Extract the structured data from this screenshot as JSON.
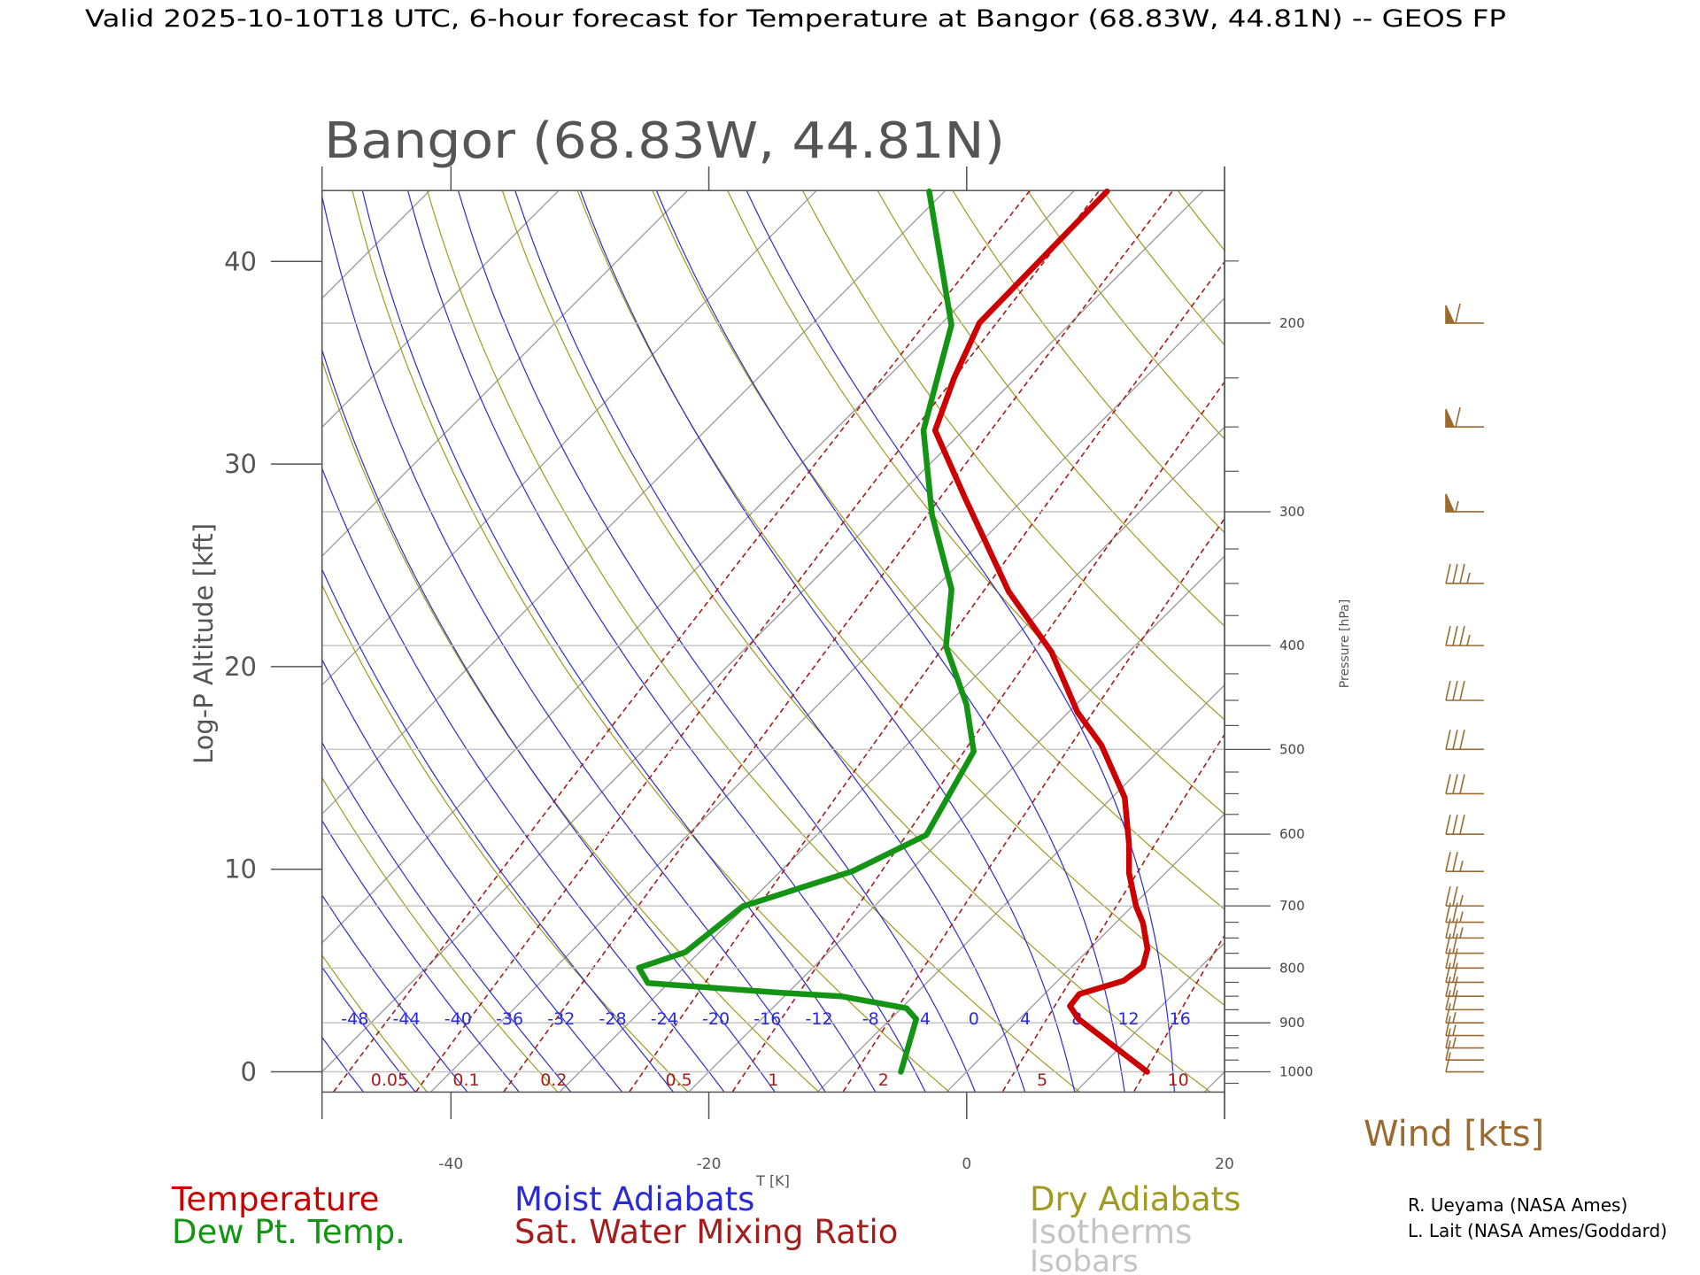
{
  "chart_data": {
    "type": "skewt",
    "header": "Valid 2025-10-10T18 UTC, 6-hour forecast for Temperature at Bangor (68.83W, 44.81N) -- GEOS FP",
    "title": "Bangor (68.83W, 44.81N)",
    "y_label": "Log-P Altitude [kft]",
    "x_label": "T [K]",
    "y2_label": "Pressure [hPa]",
    "xlim": [
      -50,
      20
    ],
    "xticks": [
      -40,
      -20,
      0,
      20
    ],
    "ylim": [
      -1,
      43.5
    ],
    "yticks": [
      0,
      10,
      20,
      30,
      40
    ],
    "y2scale": "log",
    "y2lim": [
      1044.5,
      150.4
    ],
    "y2ticks": [
      200,
      300,
      400,
      500,
      600,
      700,
      800,
      900,
      1000
    ],
    "y2minor_ticks": [
      175,
      225,
      250,
      275,
      325,
      350,
      375,
      425,
      450,
      475,
      525,
      550,
      575,
      625,
      650,
      675,
      725,
      750,
      775,
      825,
      850,
      875,
      925,
      950,
      975,
      1025
    ],
    "series": [
      {
        "name": "Temperature",
        "color": "#cc0000",
        "x": [
          14.0,
          4.6,
          2.9,
          2.7,
          5.1,
          5.5,
          4.5,
          2.1,
          0.3,
          -2.8,
          -5.1,
          -9.0,
          -14.9,
          -19.3,
          -26.0,
          -34.0,
          -44.6,
          -52.2,
          -54.8,
          -57.1,
          -57.4
        ],
        "y": [
          0,
          2.6,
          3.25,
          3.84,
          4.49,
          5.2,
          6.06,
          7.36,
          8.17,
          9.8,
          11.26,
          13.53,
          16.13,
          17.75,
          20.73,
          23.71,
          28.31,
          31.66,
          34.26,
          36.97,
          43.46
        ]
      },
      {
        "name": "Dew Pt. Temp.",
        "color": "#149414",
        "x": [
          -5.1,
          -8.0,
          -9.6,
          -15.6,
          -20.5,
          -31.6,
          -33.5,
          -31.1,
          -30.2,
          -24.4,
          -21.5,
          -24.3,
          -28.5,
          -34.6,
          -38.6,
          -45.9,
          -53.1,
          -59.1,
          -71.2
        ],
        "y": [
          0,
          2.6,
          3.14,
          3.73,
          3.9,
          4.38,
          5.14,
          5.9,
          8.17,
          9.91,
          11.69,
          15.81,
          18.13,
          21.0,
          23.82,
          27.5,
          31.66,
          36.86,
          43.46
        ]
      }
    ],
    "moist_adiabats": {
      "name": "Moist Adiabats",
      "color": "#2b2bd6",
      "labels": [
        -48,
        -44,
        -40,
        -36,
        -32,
        -28,
        -24,
        -20,
        -16,
        -12,
        -8,
        -4,
        0,
        4,
        8,
        12,
        16
      ]
    },
    "mixing_ratio": {
      "name": "Sat. Water Mixing Ratio",
      "color": "#a41c1c",
      "labels": [
        0.05,
        0.1,
        0.2,
        0.5,
        1,
        2,
        5,
        10
      ]
    },
    "dry_adiabats": {
      "name": "Dry Adiabats",
      "color": "#a09a1e"
    },
    "isotherms": {
      "name": "Isotherms",
      "color": "#c4c4c4"
    },
    "isobars": {
      "name": "Isobars",
      "color": "#c4c4c4"
    },
    "winds": {
      "title": "Wind [kts]",
      "color": "#9a6a30",
      "pressure": [
        200,
        250,
        300,
        350,
        400,
        450,
        500,
        550,
        600,
        650,
        700,
        725,
        750,
        775,
        800,
        825,
        850,
        875,
        900,
        925,
        950,
        975,
        1000
      ],
      "speed": [
        60,
        60,
        55,
        35,
        35,
        30,
        30,
        30,
        30,
        25,
        25,
        25,
        25,
        20,
        20,
        20,
        20,
        20,
        15,
        15,
        15,
        10,
        10
      ]
    },
    "credits": [
      "R. Ueyama (NASA Ames)",
      "L. Lait (NASA Ames/Goddard)"
    ]
  }
}
